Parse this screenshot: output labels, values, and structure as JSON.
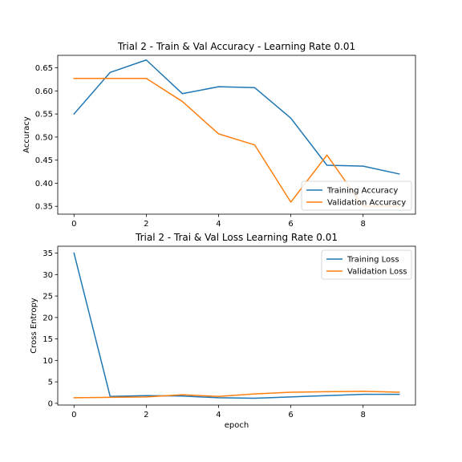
{
  "chart_data": [
    {
      "type": "line",
      "title": "Trial 2 - Train & Val Accuracy - Learning Rate 0.01",
      "xlabel": "",
      "ylabel": "Accuracy",
      "xlim": [
        -0.45,
        9.45
      ],
      "ylim": [
        0.333,
        0.677
      ],
      "xticks": [
        0,
        2,
        4,
        6,
        8
      ],
      "xtick_labels": [
        "0",
        "2",
        "4",
        "6",
        "8"
      ],
      "yticks": [
        0.35,
        0.4,
        0.45,
        0.5,
        0.55,
        0.6,
        0.65
      ],
      "ytick_labels": [
        "0.35",
        "0.40",
        "0.45",
        "0.50",
        "0.55",
        "0.60",
        "0.65"
      ],
      "grid": false,
      "legend": "lower-right",
      "x": [
        0,
        1,
        2,
        3,
        4,
        5,
        6,
        7,
        8,
        9
      ],
      "series": [
        {
          "name": "Training Accuracy",
          "color": "#1f77b4",
          "values": [
            0.55,
            0.64,
            0.667,
            0.594,
            0.609,
            0.607,
            0.541,
            0.439,
            0.437,
            0.42
          ]
        },
        {
          "name": "Validation Accuracy",
          "color": "#ff7f0e",
          "values": [
            0.627,
            0.627,
            0.627,
            0.577,
            0.507,
            0.483,
            0.359,
            0.461,
            0.35,
            0.35
          ]
        }
      ]
    },
    {
      "type": "line",
      "title": "Trial 2 - Trai & Val Loss Learning Rate 0.01",
      "xlabel": "epoch",
      "ylabel": "Cross Entropy",
      "xlim": [
        -0.45,
        9.45
      ],
      "ylim": [
        -0.4,
        36.6
      ],
      "xticks": [
        0,
        2,
        4,
        6,
        8
      ],
      "xtick_labels": [
        "0",
        "2",
        "4",
        "6",
        "8"
      ],
      "yticks": [
        0,
        5,
        10,
        15,
        20,
        25,
        30,
        35
      ],
      "ytick_labels": [
        "0",
        "5",
        "10",
        "15",
        "20",
        "25",
        "30",
        "35"
      ],
      "grid": false,
      "legend": "upper-right",
      "x": [
        0,
        1,
        2,
        3,
        4,
        5,
        6,
        7,
        8,
        9
      ],
      "series": [
        {
          "name": "Training Loss",
          "color": "#1f77b4",
          "values": [
            35.0,
            1.6,
            1.8,
            1.7,
            1.3,
            1.2,
            1.5,
            1.8,
            2.1,
            2.1
          ]
        },
        {
          "name": "Validation Loss",
          "color": "#ff7f0e",
          "values": [
            1.3,
            1.4,
            1.5,
            2.0,
            1.6,
            2.2,
            2.6,
            2.7,
            2.8,
            2.6
          ]
        }
      ]
    }
  ]
}
